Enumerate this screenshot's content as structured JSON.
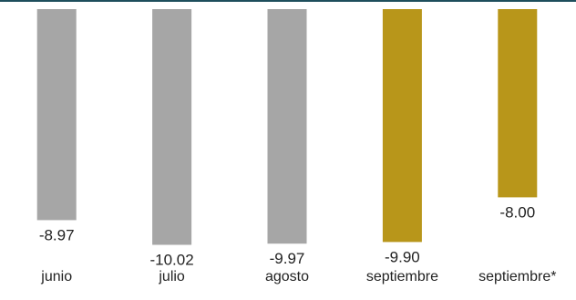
{
  "chart_data": {
    "type": "bar",
    "title": "",
    "xlabel": "",
    "ylabel": "",
    "categories": [
      "junio",
      "julio",
      "agosto",
      "septiembre",
      "septiembre*"
    ],
    "values": [
      -8.97,
      -10.02,
      -9.97,
      -9.9,
      -8.0
    ],
    "value_labels": [
      "-8.97",
      "-10.02",
      "-9.97",
      "-9.90",
      "-8.00"
    ],
    "bar_colors": [
      "#a6a6a6",
      "#a6a6a6",
      "#a6a6a6",
      "#b8961a",
      "#b8961a"
    ],
    "ylim": [
      -10.8,
      0
    ],
    "grid": false,
    "legend": "none",
    "top_border_color": "#1e4e5c"
  }
}
